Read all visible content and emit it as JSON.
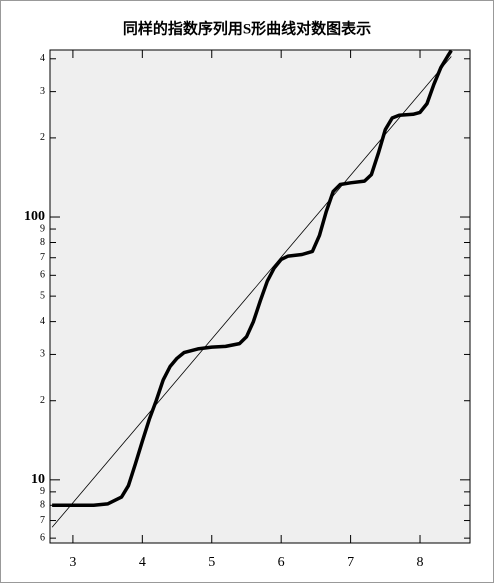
{
  "chart_data": {
    "type": "line",
    "title": "同样的指数序列用S形曲线对数图表示",
    "xlim": [
      2.67,
      8.72
    ],
    "xticks": [
      3,
      4,
      5,
      6,
      7,
      8
    ],
    "ylim": [
      5.75,
      432
    ],
    "log_y": true,
    "yticks": [
      6,
      7,
      8,
      9,
      10,
      {
        "value": 20,
        "label": "2"
      },
      {
        "value": 30,
        "label": "3"
      },
      {
        "value": 40,
        "label": "4"
      },
      {
        "value": 50,
        "label": "5"
      },
      {
        "value": 60,
        "label": "6"
      },
      {
        "value": 70,
        "label": "7"
      },
      {
        "value": 80,
        "label": "8"
      },
      {
        "value": 90,
        "label": "9"
      },
      100,
      {
        "value": 200,
        "label": "2"
      },
      {
        "value": 300,
        "label": "3"
      },
      {
        "value": 400,
        "label": "4"
      }
    ],
    "series": [
      {
        "color": "#000000",
        "x": [
          2.7,
          3.0,
          3.3,
          3.5,
          3.7,
          3.8,
          3.9,
          4.0,
          4.1,
          4.2,
          4.3,
          4.4,
          4.5,
          4.6,
          4.8,
          5.0,
          5.2,
          5.4,
          5.5,
          5.6,
          5.7,
          5.8,
          5.9,
          6.0,
          6.1,
          6.3,
          6.45,
          6.55,
          6.65,
          6.75,
          6.85,
          7.0,
          7.2,
          7.3,
          7.4,
          7.5,
          7.6,
          7.7,
          7.9,
          8.0,
          8.1,
          8.2,
          8.3,
          8.4,
          8.45
        ],
        "values": [
          8,
          8,
          8,
          8.1,
          8.6,
          9.5,
          11.5,
          14,
          17,
          20,
          24,
          27,
          29,
          30.5,
          31.5,
          32,
          32.2,
          33,
          35,
          40,
          48,
          57,
          64,
          69,
          71,
          72,
          74,
          85,
          105,
          125,
          133,
          135,
          137,
          145,
          175,
          215,
          238,
          244,
          246,
          250,
          270,
          320,
          370,
          410,
          430
        ]
      },
      {
        "color": "#000000",
        "x": [
          2.7,
          8.45
        ],
        "values": [
          6.6,
          408
        ]
      }
    ]
  }
}
